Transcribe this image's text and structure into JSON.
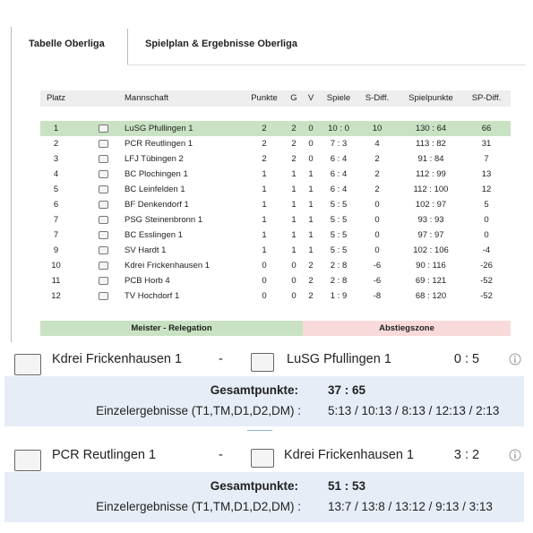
{
  "tabs": [
    "Tabelle Oberliga",
    "Spielplan & Ergebnisse Oberliga"
  ],
  "table": {
    "headers": [
      "Platz",
      "Mannschaft",
      "Punkte",
      "G",
      "V",
      "Spiele",
      "S-Diff.",
      "Spielpunkte",
      "SP-Diff."
    ],
    "rows": [
      [
        1,
        "LuSG Pfullingen 1",
        2,
        2,
        0,
        "10 : 0",
        10,
        "130 : 64",
        66
      ],
      [
        2,
        "PCR Reutlingen 1",
        2,
        2,
        0,
        "7 : 3",
        4,
        "113 : 82",
        31
      ],
      [
        3,
        "LFJ Tübingen 2",
        2,
        2,
        0,
        "6 : 4",
        2,
        "91 : 84",
        7
      ],
      [
        4,
        "BC Plochingen 1",
        1,
        1,
        1,
        "6 : 4",
        2,
        "112 : 99",
        13
      ],
      [
        5,
        "BC Leinfelden 1",
        1,
        1,
        1,
        "6 : 4",
        2,
        "112 : 100",
        12
      ],
      [
        6,
        "BF Denkendorf 1",
        1,
        1,
        1,
        "5 : 5",
        0,
        "102 : 97",
        5
      ],
      [
        7,
        "PSG Steinenbronn 1",
        1,
        1,
        1,
        "5 : 5",
        0,
        "93 : 93",
        0
      ],
      [
        7,
        "BC Esslingen 1",
        1,
        1,
        1,
        "5 : 5",
        0,
        "97 : 97",
        0
      ],
      [
        9,
        "SV Hardt 1",
        1,
        1,
        1,
        "5 : 5",
        0,
        "102 : 106",
        -4
      ],
      [
        10,
        "Kdrei Frickenhausen 1",
        0,
        0,
        2,
        "2 : 8",
        -6,
        "90 : 116",
        -26
      ],
      [
        11,
        "PCB Horb 4",
        0,
        0,
        2,
        "2 : 8",
        -6,
        "69 : 121",
        -52
      ],
      [
        12,
        "TV Hochdorf 1",
        0,
        0,
        2,
        "1 : 9",
        -8,
        "68 : 120",
        -52
      ]
    ]
  },
  "legend": [
    "Meister - Relegation",
    "Abstiegszone"
  ],
  "matches": [
    {
      "home": "Kdrei Frickenhausen 1",
      "separator": "-",
      "away": "LuSG Pfullingen 1",
      "score": "0 : 5",
      "total_label": "Gesamtpunkte:",
      "total": "37 : 65",
      "detail_label": "Einzelergebnisse (T1,TM,D1,D2,DM) :",
      "detail": "5:13 / 10:13 / 8:13 / 12:13 / 2:13"
    },
    {
      "home": "PCR Reutlingen 1",
      "separator": "-",
      "away": "Kdrei Frickenhausen 1",
      "score": "3 : 2",
      "total_label": "Gesamtpunkte:",
      "total": "51 : 53",
      "detail_label": "Einzelergebnisse (T1,TM,D1,D2,DM) :",
      "detail": "13:7 / 13:8 / 13:12 / 9:13 / 3:13"
    }
  ]
}
